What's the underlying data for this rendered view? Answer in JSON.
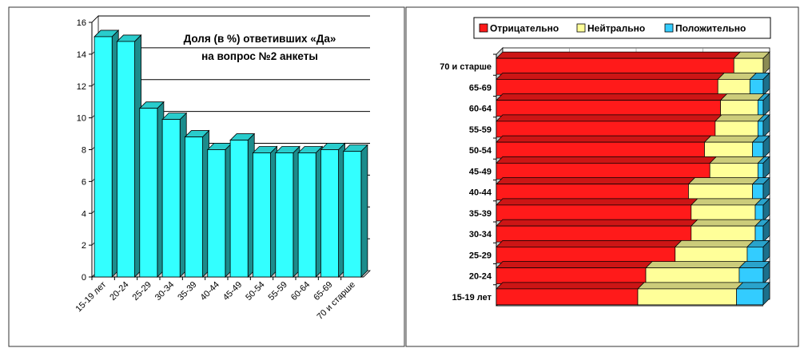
{
  "chart_data": [
    {
      "type": "bar",
      "title_lines": [
        "Доля (в %) ответивших «Да»",
        "на вопрос №2 анкеты"
      ],
      "categories": [
        "15-19 лет",
        "20-24",
        "25-29",
        "30-34",
        "35-39",
        "40-44",
        "45-49",
        "50-54",
        "55-59",
        "60-64",
        "65-69",
        "70 и старше"
      ],
      "values": [
        15.1,
        14.8,
        10.6,
        9.9,
        8.8,
        8.0,
        8.6,
        7.8,
        7.8,
        7.8,
        8.0,
        7.9
      ],
      "y_ticks": [
        "0",
        "2",
        "4",
        "6",
        "8",
        "10",
        "12",
        "14",
        "16"
      ],
      "ylim": [
        0,
        16
      ],
      "grid": "horizontal",
      "bar_color": "#33ffff"
    },
    {
      "type": "stacked-bar-horizontal",
      "categories": [
        "70 и старше",
        "65-69",
        "60-64",
        "55-59",
        "50-54",
        "45-49",
        "40-44",
        "35-39",
        "30-34",
        "25-29",
        "20-24",
        "15-19 лет"
      ],
      "series": [
        {
          "name": "Отрицательно",
          "color": "#ff1a1a",
          "values": [
            89,
            83,
            84,
            82,
            78,
            80,
            72,
            73,
            73,
            67,
            56,
            53
          ]
        },
        {
          "name": "Нейтрально",
          "color": "#ffff99",
          "values": [
            11,
            12,
            14,
            16,
            18,
            18,
            24,
            24,
            24,
            27,
            35,
            37
          ]
        },
        {
          "name": "Положительно",
          "color": "#33ccff",
          "values": [
            0,
            5,
            2,
            2,
            4,
            2,
            4,
            3,
            3,
            6,
            9,
            10
          ]
        }
      ],
      "xlim": [
        0,
        100
      ],
      "legend_position": "top"
    }
  ]
}
